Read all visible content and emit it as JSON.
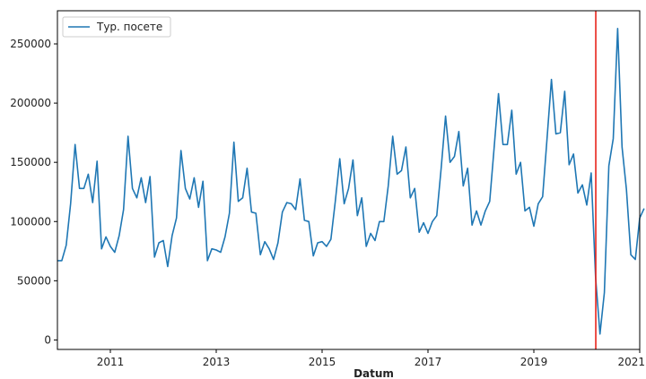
{
  "chart_data": {
    "type": "line",
    "xlabel": "Datum",
    "ylabel": "",
    "xlim": [
      2010.0,
      2021.0
    ],
    "ylim": [
      -8000,
      278000
    ],
    "x_ticks": [
      {
        "value": 2011,
        "label": "2011"
      },
      {
        "value": 2013,
        "label": "2013"
      },
      {
        "value": 2015,
        "label": "2015"
      },
      {
        "value": 2017,
        "label": "2017"
      },
      {
        "value": 2019,
        "label": "2019"
      },
      {
        "value": 2021,
        "label": "2021"
      }
    ],
    "y_ticks": [
      {
        "value": 0,
        "label": "0"
      },
      {
        "value": 50000,
        "label": "50000"
      },
      {
        "value": 100000,
        "label": "100000"
      },
      {
        "value": 150000,
        "label": "150000"
      },
      {
        "value": 200000,
        "label": "200000"
      },
      {
        "value": 250000,
        "label": "250000"
      }
    ],
    "grid": false,
    "legend_position": "top-left",
    "vline": {
      "x": 2020.17,
      "color": "#e8231b"
    },
    "series": [
      {
        "name": "Тур. посете",
        "color": "#1f77b4",
        "x_start": 2010.0,
        "x_step": 0.08333,
        "values": [
          67000,
          67000,
          80000,
          115000,
          165000,
          128000,
          128000,
          140000,
          116000,
          151000,
          77000,
          87000,
          79000,
          74000,
          88000,
          110000,
          172000,
          128000,
          120000,
          137000,
          116000,
          138000,
          70000,
          82000,
          84000,
          62000,
          88000,
          103000,
          160000,
          128000,
          119000,
          137000,
          112000,
          134000,
          67000,
          77000,
          76000,
          74000,
          87000,
          107000,
          167000,
          117000,
          120000,
          145000,
          108000,
          107000,
          72000,
          83000,
          77000,
          68000,
          82000,
          108000,
          116000,
          115000,
          110000,
          136000,
          101000,
          100000,
          71000,
          82000,
          83000,
          79000,
          85000,
          117000,
          153000,
          115000,
          128000,
          152000,
          105000,
          120000,
          79000,
          90000,
          84000,
          100000,
          100000,
          130000,
          172000,
          140000,
          143000,
          163000,
          120000,
          128000,
          91000,
          99000,
          90000,
          100000,
          105000,
          145000,
          189000,
          150000,
          155000,
          176000,
          130000,
          145000,
          97000,
          109000,
          97000,
          109000,
          117000,
          162000,
          208000,
          165000,
          165000,
          194000,
          140000,
          150000,
          109000,
          112000,
          96000,
          115000,
          121000,
          170000,
          220000,
          174000,
          175000,
          210000,
          148000,
          157000,
          124000,
          131000,
          114000,
          141000,
          53000,
          5000,
          40000,
          147000,
          170000,
          263000,
          163000,
          127000,
          72000,
          68000,
          103000,
          111000
        ]
      }
    ]
  }
}
